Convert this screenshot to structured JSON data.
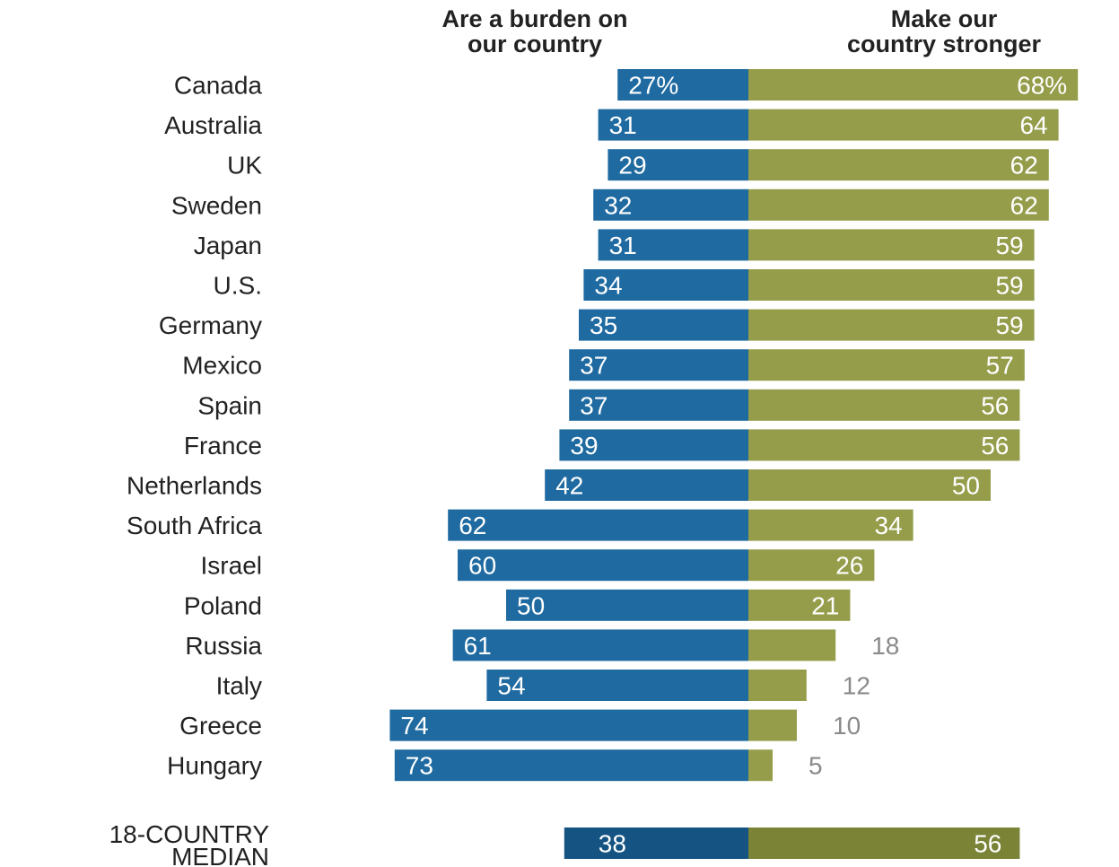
{
  "headers": {
    "burden_line1": "Are a burden on",
    "burden_line2": "our country",
    "stronger_line1": "Make our",
    "stronger_line2": "country stronger"
  },
  "colors": {
    "burden": "#1f6aa0",
    "stronger": "#959d4b",
    "median_burden": "#155482",
    "median_stronger": "#7a8336"
  },
  "chart_data": {
    "type": "bar",
    "orientation": "horizontal-diverging",
    "categories": [
      "Canada",
      "Australia",
      "UK",
      "Sweden",
      "Japan",
      "U.S.",
      "Germany",
      "Mexico",
      "Spain",
      "France",
      "Netherlands",
      "South Africa",
      "Israel",
      "Poland",
      "Russia",
      "Italy",
      "Greece",
      "Hungary"
    ],
    "series": [
      {
        "name": "Are a burden on our country",
        "values": [
          27,
          31,
          29,
          32,
          31,
          34,
          35,
          37,
          37,
          39,
          42,
          62,
          60,
          50,
          61,
          54,
          74,
          73
        ],
        "labels": [
          "27%",
          "31",
          "29",
          "32",
          "31",
          "34",
          "35",
          "37",
          "37",
          "39",
          "42",
          "62",
          "60",
          "50",
          "61",
          "54",
          "74",
          "73"
        ]
      },
      {
        "name": "Make our country stronger",
        "values": [
          68,
          64,
          62,
          62,
          59,
          59,
          59,
          57,
          56,
          56,
          50,
          34,
          26,
          21,
          18,
          12,
          10,
          5
        ],
        "labels": [
          "68%",
          "64",
          "62",
          "62",
          "59",
          "59",
          "59",
          "57",
          "56",
          "56",
          "50",
          "34",
          "26",
          "21",
          "18",
          "12",
          "10",
          "5"
        ]
      }
    ],
    "median": {
      "label_line1": "18-COUNTRY",
      "label_line2": "MEDIAN",
      "burden": 38,
      "stronger": 56
    }
  }
}
